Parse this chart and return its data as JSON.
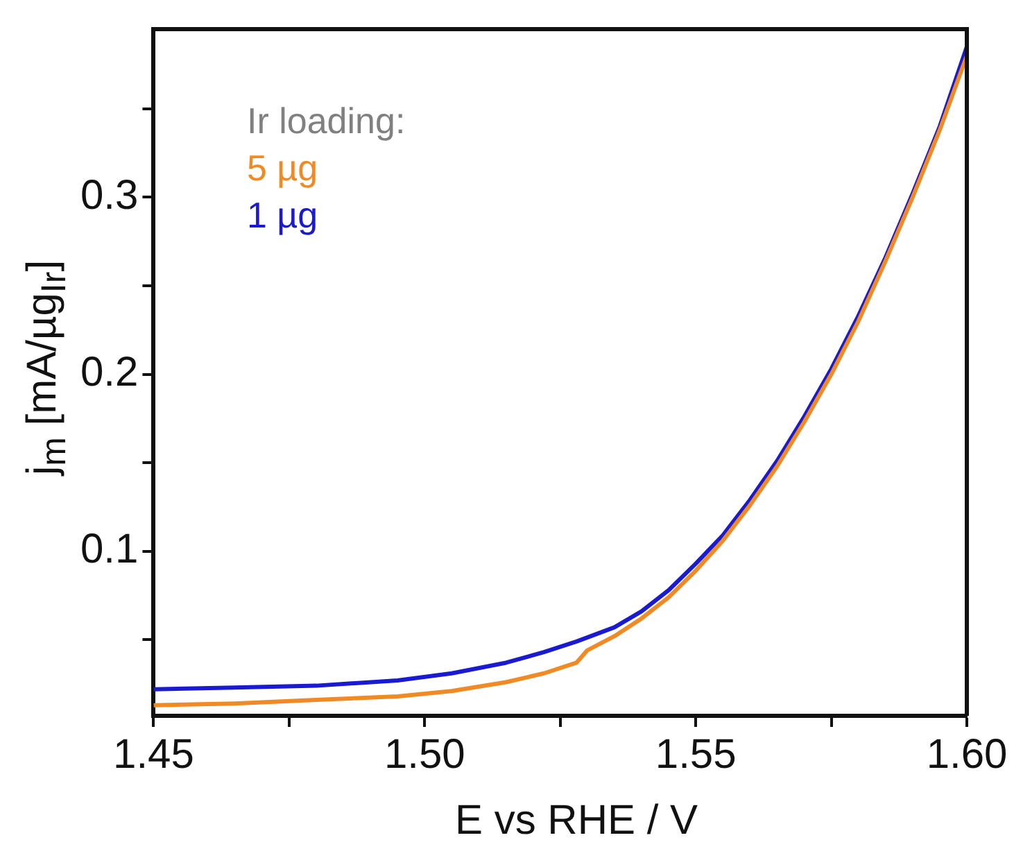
{
  "chart_data": {
    "type": "line",
    "xlabel": "E vs RHE / V",
    "ylabel": "j$_{m}$ [mA/µg$_{Ir}$]",
    "legend_title": "Ir loading:",
    "legend": "top left",
    "grid": false,
    "marker": "none",
    "line_style": "solid",
    "xlim": [
      1.45,
      1.6
    ],
    "xticks": [
      1.45,
      {
        "value": 1.475,
        "label": null
      },
      "1.50",
      {
        "value": 1.525,
        "label": null
      },
      1.55,
      {
        "value": 1.575,
        "label": null
      },
      "1.60"
    ],
    "ylim": [
      0.007,
      0.395
    ],
    "yticks": [
      {
        "value": 0.05,
        "label": null
      },
      0.1,
      {
        "value": 0.15,
        "label": null
      },
      0.2,
      {
        "value": 0.25,
        "label": null
      },
      0.3,
      {
        "value": 0.35,
        "label": null
      }
    ],
    "series": [
      {
        "name": "5 µg",
        "color": "#f08a24",
        "x": [
          1.45,
          1.465,
          1.48,
          1.495,
          1.505,
          1.515,
          1.522,
          1.528,
          1.53,
          1.535,
          1.54,
          1.545,
          1.55,
          1.555,
          1.56,
          1.565,
          1.57,
          1.575,
          1.58,
          1.585,
          1.59,
          1.595,
          1.6
        ],
        "values": [
          0.013,
          0.014,
          0.016,
          0.018,
          0.021,
          0.026,
          0.031,
          0.037,
          0.044,
          0.052,
          0.062,
          0.074,
          0.089,
          0.106,
          0.126,
          0.148,
          0.173,
          0.2,
          0.23,
          0.264,
          0.3,
          0.338,
          0.38
        ]
      },
      {
        "name": "1 µg",
        "color": "#1a1ad0",
        "x": [
          1.45,
          1.465,
          1.48,
          1.495,
          1.505,
          1.515,
          1.522,
          1.528,
          1.535,
          1.54,
          1.545,
          1.55,
          1.555,
          1.56,
          1.565,
          1.57,
          1.575,
          1.58,
          1.585,
          1.59,
          1.595,
          1.6
        ],
        "values": [
          0.022,
          0.023,
          0.024,
          0.027,
          0.031,
          0.037,
          0.043,
          0.049,
          0.057,
          0.066,
          0.078,
          0.093,
          0.109,
          0.129,
          0.151,
          0.176,
          0.203,
          0.233,
          0.266,
          0.302,
          0.34,
          0.385
        ]
      }
    ]
  }
}
